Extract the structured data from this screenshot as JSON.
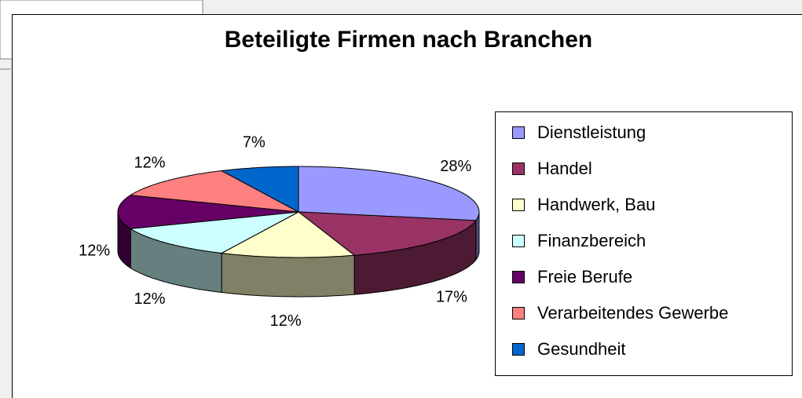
{
  "chart_data": {
    "type": "pie",
    "title": "Beteiligte Firmen nach Branchen",
    "categories": [
      "Dienstleistung",
      "Handel",
      "Handwerk, Bau",
      "Finanzbereich",
      "Freie Berufe",
      "Verarbeitendes Gewerbe",
      "Gesundheit"
    ],
    "values": [
      28,
      17,
      12,
      12,
      12,
      12,
      7
    ],
    "value_labels": [
      "28%",
      "17%",
      "12%",
      "12%",
      "12%",
      "12%",
      "7%"
    ],
    "colors": [
      "#9999ff",
      "#993366",
      "#ffffcc",
      "#ccffff",
      "#660066",
      "#ff8080",
      "#0066cc"
    ],
    "legend": "right"
  }
}
